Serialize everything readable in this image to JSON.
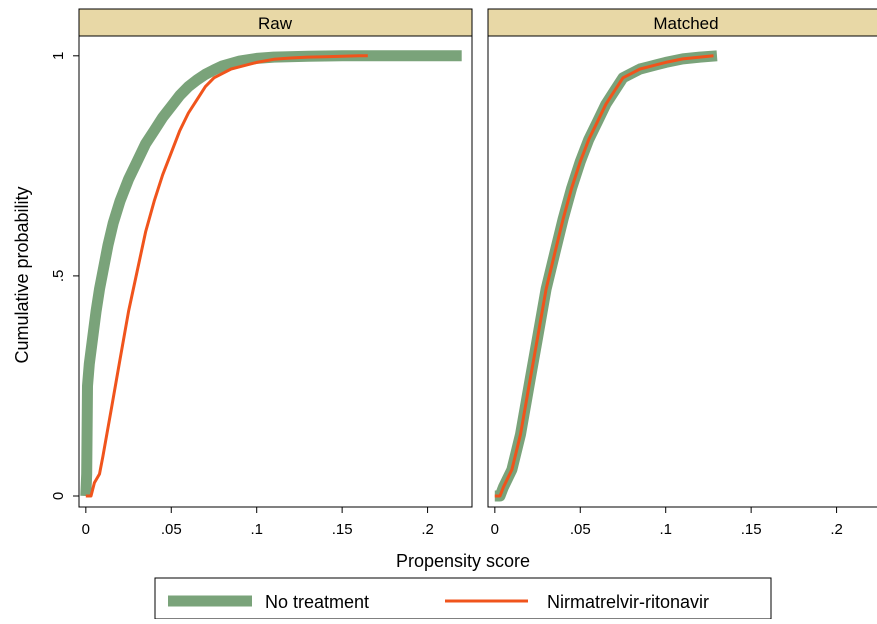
{
  "chart_data": {
    "type": "line",
    "panels": [
      {
        "title": "Raw",
        "series": [
          {
            "name": "No treatment",
            "x": [
              0,
              0.0005,
              0.001,
              0.002,
              0.004,
              0.006,
              0.008,
              0.01,
              0.013,
              0.016,
              0.02,
              0.025,
              0.03,
              0.035,
              0.04,
              0.045,
              0.05,
              0.055,
              0.06,
              0.065,
              0.07,
              0.075,
              0.08,
              0.09,
              0.1,
              0.11,
              0.13,
              0.15,
              0.18,
              0.2,
              0.22
            ],
            "y": [
              0,
              0.05,
              0.25,
              0.3,
              0.36,
              0.42,
              0.47,
              0.51,
              0.57,
              0.62,
              0.67,
              0.72,
              0.76,
              0.8,
              0.83,
              0.86,
              0.885,
              0.91,
              0.93,
              0.945,
              0.958,
              0.968,
              0.977,
              0.988,
              0.994,
              0.997,
              0.999,
              1.0,
              1.0,
              1.0,
              1.0
            ]
          },
          {
            "name": "Nirmatrelvir-ritonavir",
            "x": [
              0,
              0.003,
              0.005,
              0.008,
              0.01,
              0.015,
              0.02,
              0.025,
              0.03,
              0.035,
              0.04,
              0.045,
              0.05,
              0.055,
              0.06,
              0.065,
              0.07,
              0.075,
              0.08,
              0.085,
              0.09,
              0.095,
              0.1,
              0.11,
              0.12,
              0.13,
              0.14,
              0.15,
              0.16,
              0.165
            ],
            "y": [
              0,
              0.0,
              0.03,
              0.05,
              0.09,
              0.2,
              0.31,
              0.42,
              0.51,
              0.6,
              0.67,
              0.73,
              0.78,
              0.83,
              0.87,
              0.9,
              0.93,
              0.95,
              0.96,
              0.97,
              0.975,
              0.98,
              0.985,
              0.992,
              0.995,
              0.997,
              0.998,
              0.999,
              1.0,
              1.0
            ]
          }
        ]
      },
      {
        "title": "Matched",
        "series": [
          {
            "name": "No treatment",
            "x": [
              0,
              0.003,
              0.005,
              0.01,
              0.015,
              0.02,
              0.025,
              0.03,
              0.035,
              0.04,
              0.045,
              0.05,
              0.055,
              0.06,
              0.065,
              0.07,
              0.075,
              0.08,
              0.085,
              0.09,
              0.095,
              0.1,
              0.11,
              0.12,
              0.13
            ],
            "y": [
              0,
              0.0,
              0.02,
              0.06,
              0.14,
              0.25,
              0.36,
              0.47,
              0.55,
              0.63,
              0.7,
              0.76,
              0.81,
              0.85,
              0.89,
              0.92,
              0.95,
              0.96,
              0.97,
              0.975,
              0.98,
              0.985,
              0.993,
              0.997,
              1.0
            ]
          },
          {
            "name": "Nirmatrelvir-ritonavir",
            "x": [
              0,
              0.003,
              0.005,
              0.01,
              0.015,
              0.02,
              0.025,
              0.03,
              0.035,
              0.04,
              0.045,
              0.05,
              0.055,
              0.06,
              0.065,
              0.07,
              0.075,
              0.08,
              0.085,
              0.09,
              0.095,
              0.1,
              0.11,
              0.12,
              0.128
            ],
            "y": [
              0,
              0.0,
              0.02,
              0.06,
              0.14,
              0.25,
              0.36,
              0.47,
              0.55,
              0.63,
              0.7,
              0.76,
              0.81,
              0.85,
              0.89,
              0.92,
              0.95,
              0.96,
              0.97,
              0.975,
              0.98,
              0.985,
              0.993,
              0.997,
              1.0
            ]
          }
        ]
      }
    ],
    "xlabel": "Propensity score",
    "ylabel": "Cumulative probability",
    "xticks": [
      "0",
      ".05",
      ".1",
      ".15",
      ".2"
    ],
    "xtick_values": [
      0,
      0.05,
      0.1,
      0.15,
      0.2
    ],
    "yticks": [
      "0",
      ".5",
      "1"
    ],
    "ytick_values": [
      0,
      0.5,
      1
    ],
    "xlim": [
      -0.004,
      0.226
    ],
    "ylim": [
      -0.025,
      1.045
    ],
    "grid": false,
    "legend": {
      "position": "bottom",
      "entries": [
        "No treatment",
        "Nirmatrelvir-ritonavir"
      ]
    },
    "colors": {
      "no_treatment": "#7aa37a",
      "nirmatrelvir_ritonavir": "#f0541c",
      "strip": "#e8d8a6"
    }
  }
}
